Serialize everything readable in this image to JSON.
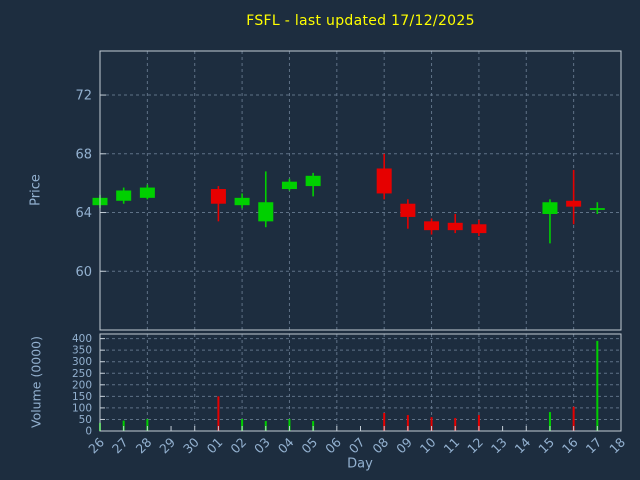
{
  "chart_data": {
    "type": "candlestick",
    "title": "FSFL - last updated 17/12/2025",
    "xlabel": "Day",
    "price_axis": {
      "label": "Price",
      "ticks": [
        60,
        64,
        68,
        72
      ],
      "ylim": [
        56,
        75
      ]
    },
    "volume_axis": {
      "label": "Volume (0000)",
      "ticks": [
        0,
        50,
        100,
        150,
        200,
        250,
        300,
        350,
        400
      ],
      "ylim": [
        0,
        420
      ]
    },
    "categories": [
      "26",
      "27",
      "28",
      "29",
      "30",
      "01",
      "02",
      "03",
      "04",
      "05",
      "06",
      "07",
      "08",
      "09",
      "10",
      "11",
      "12",
      "13",
      "14",
      "15",
      "16",
      "17",
      "18"
    ],
    "candles": [
      {
        "day": "26",
        "open": 64.5,
        "high": 65.2,
        "low": 64.3,
        "close": 65.0,
        "volume": 35
      },
      {
        "day": "27",
        "open": 64.8,
        "high": 65.7,
        "low": 64.6,
        "close": 65.5,
        "volume": 45
      },
      {
        "day": "28",
        "open": 65.0,
        "high": 65.9,
        "low": 64.9,
        "close": 65.7,
        "volume": 52
      },
      {
        "day": "01",
        "open": 65.6,
        "high": 65.8,
        "low": 63.4,
        "close": 64.6,
        "volume": 150
      },
      {
        "day": "02",
        "open": 64.5,
        "high": 65.3,
        "low": 64.3,
        "close": 65.0,
        "volume": 52
      },
      {
        "day": "03",
        "open": 63.4,
        "high": 66.8,
        "low": 63.0,
        "close": 64.7,
        "volume": 43
      },
      {
        "day": "04",
        "open": 65.6,
        "high": 66.3,
        "low": 65.5,
        "close": 66.1,
        "volume": 52
      },
      {
        "day": "05",
        "open": 65.8,
        "high": 66.7,
        "low": 65.1,
        "close": 66.5,
        "volume": 43
      },
      {
        "day": "08",
        "open": 67.0,
        "high": 68.0,
        "low": 64.9,
        "close": 65.3,
        "volume": 78
      },
      {
        "day": "09",
        "open": 64.6,
        "high": 64.9,
        "low": 62.9,
        "close": 63.7,
        "volume": 69
      },
      {
        "day": "10",
        "open": 63.4,
        "high": 63.6,
        "low": 62.5,
        "close": 62.8,
        "volume": 60
      },
      {
        "day": "11",
        "open": 63.3,
        "high": 63.9,
        "low": 62.6,
        "close": 62.8,
        "volume": 56
      },
      {
        "day": "12",
        "open": 63.2,
        "high": 63.5,
        "low": 62.4,
        "close": 62.6,
        "volume": 69
      },
      {
        "day": "15",
        "open": 63.9,
        "high": 64.9,
        "low": 61.9,
        "close": 64.7,
        "volume": 82
      },
      {
        "day": "16",
        "open": 64.8,
        "high": 66.9,
        "low": 63.2,
        "close": 64.4,
        "volume": 105
      },
      {
        "day": "17",
        "open": 64.2,
        "high": 64.7,
        "low": 63.9,
        "close": 64.3,
        "volume": 390
      }
    ],
    "legend": "none",
    "grid": "dashed",
    "colors": {
      "background": "#1d2d3f",
      "title": "#ffff00",
      "axis_text": "#93b1d0",
      "grid": "#5f7287",
      "border": "#c3cdd6",
      "up": "#00d000",
      "down": "#e60000"
    }
  }
}
